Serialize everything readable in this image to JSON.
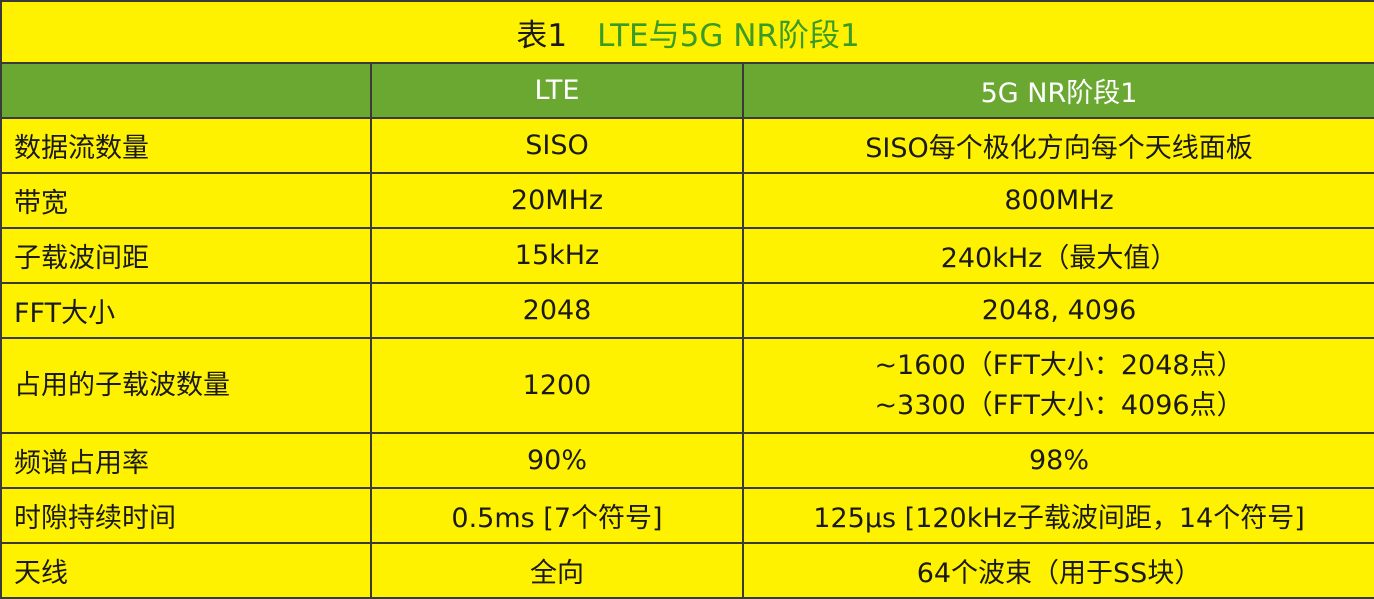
{
  "title": {
    "label": "表1",
    "text": "LTE与5G NR阶段1"
  },
  "table": {
    "header": [
      "LTE",
      "5G NR阶段1"
    ],
    "rows": [
      [
        "数据流数量",
        "SISO",
        [
          "SISO每个极化方向每个天线面板"
        ]
      ],
      [
        "带宽",
        "20MHz",
        [
          "800MHz"
        ]
      ],
      [
        "子载波间距",
        "15kHz",
        [
          "240kHz（最大值）"
        ]
      ],
      [
        "FFT大小",
        "2048",
        [
          "2048, 4096"
        ]
      ],
      [
        "占用的子载波数量",
        "1200",
        [
          "~1600（FFT大小：2048点）",
          "~3300（FFT大小：4096点）"
        ]
      ],
      [
        "频谱占用率",
        "90%",
        [
          "98%"
        ]
      ],
      [
        "时隙持续时间",
        "0.5ms [7个符号]",
        [
          "125μs [120kHz子载波间距，14个符号]"
        ]
      ],
      [
        "天线",
        "全向",
        [
          "64个波束（用于SS块）"
        ]
      ]
    ]
  }
}
